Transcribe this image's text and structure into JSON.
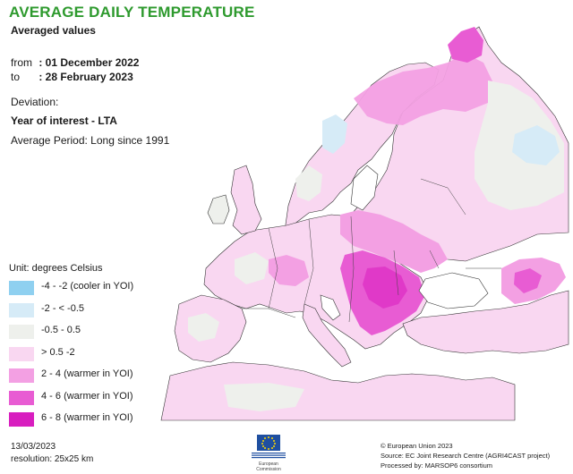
{
  "header": {
    "title": "AVERAGE DAILY TEMPERATURE",
    "subtitle": "Averaged values"
  },
  "period": {
    "from_label": "from",
    "from_value": ": 01 December 2022",
    "to_label": "to",
    "to_value": ": 28 February 2023"
  },
  "deviation": {
    "label": "Deviation:",
    "type": "Year of interest - LTA",
    "average_period": "Average Period: Long since 1991"
  },
  "legend": {
    "unit": "Unit: degrees Celsius",
    "items": [
      {
        "label": "-4 - -2 (cooler in YOI)",
        "color": "#8fd0f0"
      },
      {
        "label": "-2 - < -0.5",
        "color": "#d6ebf7"
      },
      {
        "label": "-0.5 - 0.5",
        "color": "#eef0ec"
      },
      {
        "label": "> 0.5 -2",
        "color": "#f9d7f1"
      },
      {
        "label": "2 - 4 (warmer in YOI)",
        "color": "#f3a0e3"
      },
      {
        "label": "4 - 6 (warmer in YOI)",
        "color": "#e85cd3"
      },
      {
        "label": "6 - 8 (warmer in YOI)",
        "color": "#d81ebf"
      }
    ]
  },
  "footer": {
    "date": "13/03/2023",
    "resolution": "resolution: 25x25 km",
    "copyright": "© European Union 2023",
    "source": "Source: EC Joint Research Centre (AGRI4CAST project)",
    "processed": "Processed by: MARSOP6 consortium",
    "logo_text": "European Commission"
  },
  "colors": {
    "title": "#2e9a2e",
    "sea": "#ffffff",
    "border": "#333333"
  }
}
